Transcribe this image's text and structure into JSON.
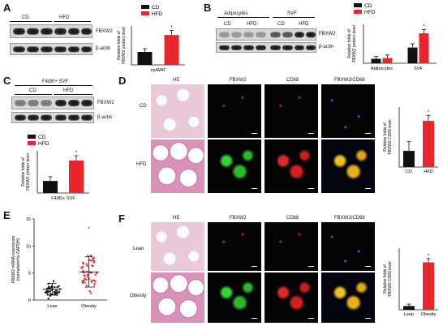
{
  "panels": {
    "A": {
      "letter": "A",
      "groups": [
        "CD",
        "HFD"
      ],
      "blot_rows": [
        "FBXW2",
        "β-actin"
      ],
      "chart": {
        "type": "bar",
        "categories": [
          "CD",
          "HFD"
        ],
        "values": [
          1.0,
          2.3
        ],
        "errors": [
          0.25,
          0.35
        ],
        "colors": [
          "#111111",
          "#e8262b"
        ],
        "ylabel": "Relative folds of FBXW2 protein level",
        "xlabel": "epiWAT",
        "significance": "*",
        "legend": [
          "CD",
          "HFD"
        ]
      }
    },
    "B": {
      "letter": "B",
      "group_headers": [
        "Adipocytes",
        "SVF"
      ],
      "groups": [
        "CD",
        "HFD",
        "CD",
        "HFD"
      ],
      "blot_rows": [
        "FBXW2",
        "β-actin"
      ],
      "chart": {
        "type": "bar",
        "categories": [
          "Adipocytes",
          "SVF"
        ],
        "series": [
          {
            "name": "CD",
            "values": [
              0.3,
              1.05
            ],
            "errors": [
              0.15,
              0.25
            ],
            "color": "#111111"
          },
          {
            "name": "HFD",
            "values": [
              0.35,
              2.0
            ],
            "errors": [
              0.2,
              0.25
            ],
            "color": "#e8262b"
          }
        ],
        "ylabel": "Relative folds of FBXW2 protein level",
        "significance": "*",
        "legend": [
          "CD",
          "HFD"
        ]
      }
    },
    "C": {
      "letter": "C",
      "header": "F4/80+ SVF",
      "groups": [
        "CD",
        "HFD"
      ],
      "blot_rows": [
        "FBXW2",
        "β-actin"
      ],
      "chart": {
        "type": "bar",
        "categories": [
          "CD",
          "HFD"
        ],
        "values": [
          1.0,
          2.7
        ],
        "errors": [
          0.35,
          0.4
        ],
        "colors": [
          "#111111",
          "#e8262b"
        ],
        "ylabel": "Relative folds of FBXW2 protein level",
        "xlabel": "F4/80+ SVF",
        "significance": "*",
        "legend": [
          "CD",
          "HFD"
        ]
      }
    },
    "D": {
      "letter": "D",
      "col_headers": [
        "HE",
        "FBXW2",
        "CD68",
        "FBXW2/CD68"
      ],
      "row_labels": [
        "CD",
        "HFD"
      ],
      "chart": {
        "type": "bar",
        "categories": [
          "CD",
          "HFD"
        ],
        "values": [
          0.35,
          1.0
        ],
        "errors": [
          0.2,
          0.12
        ],
        "colors": [
          "#111111",
          "#e8262b"
        ],
        "ylabel": "Relative folds of FBXW2 CD68 level",
        "significance": "*"
      }
    },
    "E": {
      "letter": "E",
      "chart": {
        "type": "scatter",
        "categories": [
          "Lean",
          "Obesity"
        ],
        "means": [
          2.0,
          5.2
        ],
        "sd": [
          1.1,
          2.8
        ],
        "colors": [
          "#111111",
          "#e8262b"
        ],
        "ylabel": "FBXW2 mRNA expression (normalized to GAPDH)",
        "ylim": [
          0,
          15
        ],
        "yticks": [
          "0",
          "5",
          "10",
          "15"
        ],
        "significance": "*"
      }
    },
    "F": {
      "letter": "F",
      "col_headers": [
        "HE",
        "FBXW2",
        "CD68",
        "FBXW2/CD68"
      ],
      "row_labels": [
        "Lean",
        "Obesity"
      ],
      "chart": {
        "type": "bar",
        "categories": [
          "Lean",
          "Obesity"
        ],
        "values": [
          0.08,
          1.0
        ],
        "errors": [
          0.04,
          0.08
        ],
        "colors": [
          "#111111",
          "#e8262b"
        ],
        "ylabel": "Relative folds of FBXW2 CD68 level",
        "significance": "*"
      }
    }
  }
}
